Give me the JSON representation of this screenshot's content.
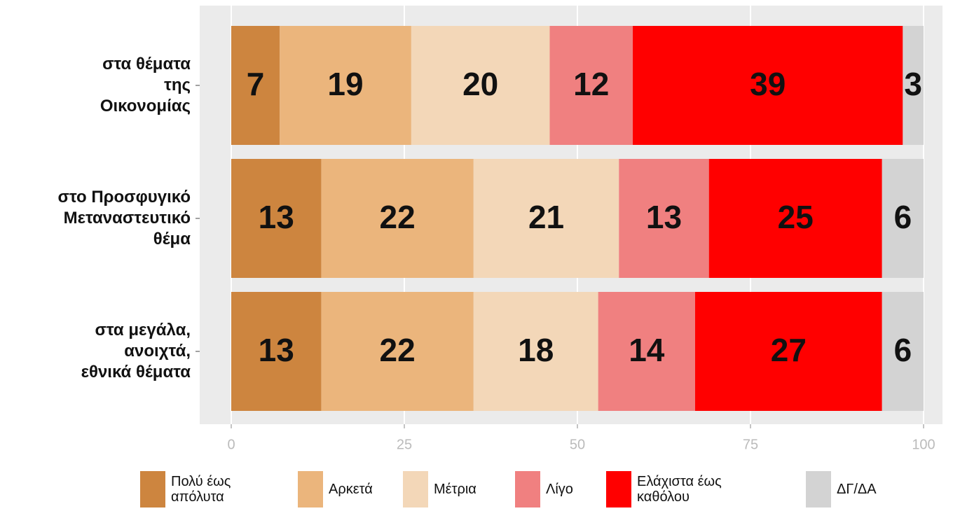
{
  "chart_data": {
    "type": "stacked_barh",
    "categories": [
      "στα θέματα\nτης\nΟικονομίας",
      "στο Προσφυγικό\nΜεταναστευτικό\nθέμα",
      "στα μεγάλα,\nανοιχτά,\nεθνικά θέματα"
    ],
    "series": [
      {
        "name": "Πολύ έως\nαπόλυτα",
        "color": "#cd853f",
        "values": [
          7,
          13,
          13
        ]
      },
      {
        "name": "Αρκετά",
        "color": "#ebb57c",
        "values": [
          19,
          22,
          22
        ]
      },
      {
        "name": "Μέτρια",
        "color": "#f3d7b8",
        "values": [
          20,
          21,
          18
        ]
      },
      {
        "name": "Λίγο",
        "color": "#f08080",
        "values": [
          12,
          13,
          14
        ]
      },
      {
        "name": "Ελάχιστα έως\nκαθόλου",
        "color": "#ff0000",
        "values": [
          39,
          25,
          27
        ]
      },
      {
        "name": "ΔΓ/ΔΑ",
        "color": "#d3d3d3",
        "values": [
          3,
          6,
          6
        ]
      }
    ],
    "xlim": [
      0,
      100
    ],
    "xticks": [
      0,
      25,
      50,
      75,
      100
    ],
    "grid": true,
    "legend": "bottom"
  }
}
